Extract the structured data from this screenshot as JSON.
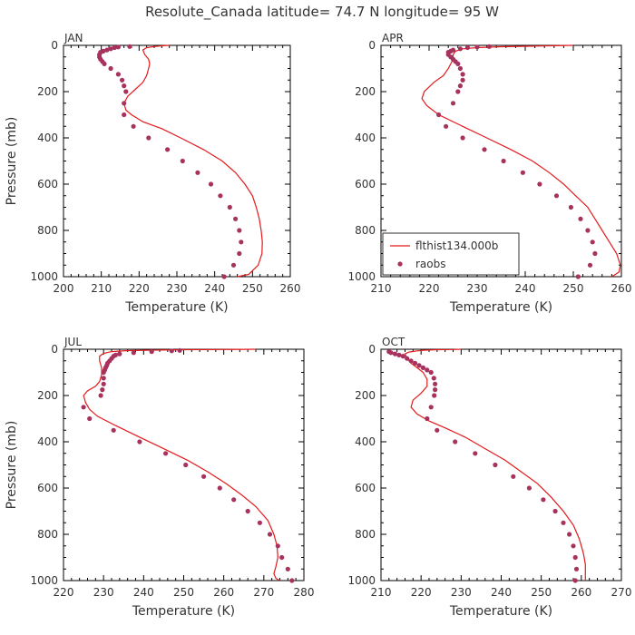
{
  "figure": {
    "title": "Resolute_Canada   latitude= 74.7 N longitude= 95 W"
  },
  "colors": {
    "model": "#e31a1c",
    "obs": "#a8325e",
    "axes": "#000000",
    "text": "#333333"
  },
  "legend": {
    "panel": 1,
    "placement": "lower-left",
    "model_label": "flthist134.000b",
    "obs_label": "raobs"
  },
  "chart_data": [
    {
      "type": "line",
      "month": "JAN",
      "xlabel": "Temperature (K)",
      "ylabel": "Pressure (mb)",
      "xlim": [
        200,
        260
      ],
      "ylim": [
        1000,
        0
      ],
      "xticks": [
        200,
        210,
        220,
        230,
        240,
        250,
        260
      ],
      "yticks": [
        0,
        200,
        400,
        600,
        800,
        1000
      ],
      "model": [
        [
          228,
          0
        ],
        [
          226,
          2
        ],
        [
          224,
          5
        ],
        [
          222,
          10
        ],
        [
          221,
          20
        ],
        [
          221.5,
          40
        ],
        [
          222.5,
          60
        ],
        [
          222.8,
          80
        ],
        [
          222.5,
          100
        ],
        [
          222,
          130
        ],
        [
          221,
          160
        ],
        [
          219,
          190
        ],
        [
          217,
          220
        ],
        [
          216,
          250
        ],
        [
          216.5,
          280
        ],
        [
          218,
          300
        ],
        [
          221,
          330
        ],
        [
          226,
          360
        ],
        [
          231,
          400
        ],
        [
          237,
          450
        ],
        [
          242,
          500
        ],
        [
          245.5,
          550
        ],
        [
          248,
          600
        ],
        [
          250,
          650
        ],
        [
          251,
          700
        ],
        [
          251.8,
          750
        ],
        [
          252.3,
          800
        ],
        [
          252.6,
          850
        ],
        [
          252.5,
          900
        ],
        [
          251.5,
          950
        ],
        [
          249,
          990
        ],
        [
          246,
          1000
        ]
      ],
      "obs": [
        [
          217.5,
          5
        ],
        [
          214.5,
          7
        ],
        [
          213.5,
          10
        ],
        [
          212.5,
          15
        ],
        [
          211.5,
          20
        ],
        [
          210.5,
          25
        ],
        [
          209.8,
          30
        ],
        [
          209.5,
          40
        ],
        [
          209.5,
          50
        ],
        [
          209.8,
          60
        ],
        [
          210.3,
          70
        ],
        [
          210.8,
          80
        ],
        [
          212.5,
          100
        ],
        [
          214.5,
          125
        ],
        [
          215.5,
          150
        ],
        [
          216,
          175
        ],
        [
          216.5,
          200
        ],
        [
          216,
          250
        ],
        [
          216,
          300
        ],
        [
          218.5,
          350
        ],
        [
          222.5,
          400
        ],
        [
          227.5,
          450
        ],
        [
          231.5,
          500
        ],
        [
          235.5,
          550
        ],
        [
          239,
          600
        ],
        [
          241.5,
          650
        ],
        [
          244,
          700
        ],
        [
          245.5,
          750
        ],
        [
          246.5,
          800
        ],
        [
          247,
          850
        ],
        [
          246.5,
          900
        ],
        [
          245,
          950
        ],
        [
          242.5,
          1000
        ]
      ]
    },
    {
      "type": "line",
      "month": "APR",
      "xlabel": "Temperature (K)",
      "ylabel": "",
      "xlim": [
        210,
        260
      ],
      "ylim": [
        1000,
        0
      ],
      "xticks": [
        210,
        220,
        230,
        240,
        250,
        260
      ],
      "yticks": [
        0,
        200,
        400,
        600,
        800,
        1000
      ],
      "model": [
        [
          250,
          0
        ],
        [
          245,
          2
        ],
        [
          240,
          4
        ],
        [
          235,
          6
        ],
        [
          230,
          10
        ],
        [
          227,
          15
        ],
        [
          225.5,
          25
        ],
        [
          225,
          40
        ],
        [
          225,
          60
        ],
        [
          224.5,
          80
        ],
        [
          224,
          100
        ],
        [
          223,
          130
        ],
        [
          221,
          160
        ],
        [
          219,
          200
        ],
        [
          218.5,
          230
        ],
        [
          219.5,
          260
        ],
        [
          222,
          300
        ],
        [
          227,
          350
        ],
        [
          232,
          400
        ],
        [
          237,
          450
        ],
        [
          241.5,
          500
        ],
        [
          245,
          550
        ],
        [
          248,
          600
        ],
        [
          250.5,
          650
        ],
        [
          253,
          700
        ],
        [
          254.5,
          750
        ],
        [
          256,
          800
        ],
        [
          257.5,
          850
        ],
        [
          259,
          900
        ],
        [
          259.8,
          950
        ],
        [
          259.5,
          980
        ],
        [
          258,
          1000
        ]
      ],
      "obs": [
        [
          232.5,
          5
        ],
        [
          230,
          7
        ],
        [
          228,
          10
        ],
        [
          226.5,
          15
        ],
        [
          225,
          20
        ],
        [
          224.5,
          25
        ],
        [
          224,
          30
        ],
        [
          224,
          40
        ],
        [
          224.5,
          50
        ],
        [
          225,
          60
        ],
        [
          225.5,
          70
        ],
        [
          226,
          80
        ],
        [
          226.5,
          100
        ],
        [
          227,
          125
        ],
        [
          227,
          150
        ],
        [
          226.5,
          175
        ],
        [
          226,
          200
        ],
        [
          225,
          250
        ],
        [
          222,
          300
        ],
        [
          223.5,
          350
        ],
        [
          227,
          400
        ],
        [
          231.5,
          450
        ],
        [
          235.5,
          500
        ],
        [
          239.5,
          550
        ],
        [
          243,
          600
        ],
        [
          246.5,
          650
        ],
        [
          249.5,
          700
        ],
        [
          251.5,
          750
        ],
        [
          253,
          800
        ],
        [
          254,
          850
        ],
        [
          254.5,
          900
        ],
        [
          253.5,
          950
        ],
        [
          251,
          1000
        ]
      ]
    },
    {
      "type": "line",
      "month": "JUL",
      "xlabel": "Temperature (K)",
      "ylabel": "Pressure (mb)",
      "xlim": [
        220,
        280
      ],
      "ylim": [
        1000,
        0
      ],
      "xticks": [
        220,
        230,
        240,
        250,
        260,
        270,
        280
      ],
      "yticks": [
        0,
        200,
        400,
        600,
        800,
        1000
      ],
      "model": [
        [
          268,
          0
        ],
        [
          260,
          1
        ],
        [
          250,
          2
        ],
        [
          242,
          4
        ],
        [
          236,
          6
        ],
        [
          232,
          10
        ],
        [
          230,
          18
        ],
        [
          229,
          30
        ],
        [
          229,
          50
        ],
        [
          229.5,
          80
        ],
        [
          229.5,
          110
        ],
        [
          229,
          140
        ],
        [
          228,
          160
        ],
        [
          226,
          180
        ],
        [
          225,
          200
        ],
        [
          225.5,
          230
        ],
        [
          226.5,
          260
        ],
        [
          228.5,
          290
        ],
        [
          233,
          330
        ],
        [
          239,
          380
        ],
        [
          245,
          430
        ],
        [
          251,
          480
        ],
        [
          256,
          530
        ],
        [
          260.5,
          580
        ],
        [
          264.5,
          630
        ],
        [
          268,
          680
        ],
        [
          271,
          740
        ],
        [
          272.5,
          800
        ],
        [
          273.3,
          850
        ],
        [
          273.5,
          900
        ],
        [
          273,
          940
        ],
        [
          272.5,
          970
        ],
        [
          273,
          990
        ],
        [
          274,
          1000
        ]
      ],
      "obs": [
        [
          249,
          5
        ],
        [
          247,
          7
        ],
        [
          242,
          10
        ],
        [
          237.5,
          15
        ],
        [
          234,
          20
        ],
        [
          233,
          25
        ],
        [
          232.5,
          30
        ],
        [
          232,
          40
        ],
        [
          231.5,
          50
        ],
        [
          231,
          60
        ],
        [
          230.8,
          70
        ],
        [
          230.5,
          80
        ],
        [
          230.3,
          90
        ],
        [
          230,
          100
        ],
        [
          230,
          125
        ],
        [
          230,
          150
        ],
        [
          229.7,
          175
        ],
        [
          229.3,
          200
        ],
        [
          225,
          250
        ],
        [
          226.5,
          300
        ],
        [
          232.5,
          350
        ],
        [
          239,
          400
        ],
        [
          245.5,
          450
        ],
        [
          250.5,
          500
        ],
        [
          255,
          550
        ],
        [
          259,
          600
        ],
        [
          262.5,
          650
        ],
        [
          266,
          700
        ],
        [
          269,
          750
        ],
        [
          271.5,
          800
        ],
        [
          273.5,
          850
        ],
        [
          274.5,
          900
        ],
        [
          276,
          950
        ],
        [
          277,
          1000
        ]
      ]
    },
    {
      "type": "line",
      "month": "OCT",
      "xlabel": "Temperature (K)",
      "ylabel": "",
      "xlim": [
        210,
        270
      ],
      "ylim": [
        1000,
        0
      ],
      "xticks": [
        210,
        220,
        230,
        240,
        250,
        260,
        270
      ],
      "yticks": [
        0,
        200,
        400,
        600,
        800,
        1000
      ],
      "model": [
        [
          230,
          0
        ],
        [
          228,
          1
        ],
        [
          224,
          2
        ],
        [
          221,
          4
        ],
        [
          219,
          7
        ],
        [
          217,
          12
        ],
        [
          216,
          20
        ],
        [
          216.5,
          40
        ],
        [
          217.5,
          60
        ],
        [
          219,
          80
        ],
        [
          220.5,
          100
        ],
        [
          221.5,
          130
        ],
        [
          221.5,
          160
        ],
        [
          220,
          190
        ],
        [
          218,
          220
        ],
        [
          217.5,
          250
        ],
        [
          219,
          280
        ],
        [
          222,
          310
        ],
        [
          226,
          340
        ],
        [
          231,
          380
        ],
        [
          236,
          430
        ],
        [
          241,
          480
        ],
        [
          245,
          530
        ],
        [
          249,
          580
        ],
        [
          252.5,
          640
        ],
        [
          255.5,
          700
        ],
        [
          258,
          760
        ],
        [
          259.5,
          820
        ],
        [
          260.5,
          880
        ],
        [
          261,
          930
        ],
        [
          261,
          970
        ],
        [
          261,
          1000
        ]
      ],
      "obs": [
        [
          212,
          10
        ],
        [
          212.5,
          15
        ],
        [
          213.5,
          20
        ],
        [
          214.5,
          25
        ],
        [
          215.5,
          30
        ],
        [
          216.5,
          40
        ],
        [
          217.5,
          50
        ],
        [
          218.5,
          60
        ],
        [
          219.5,
          70
        ],
        [
          220.5,
          80
        ],
        [
          221.5,
          90
        ],
        [
          222.5,
          100
        ],
        [
          223.2,
          125
        ],
        [
          223.5,
          150
        ],
        [
          223.5,
          175
        ],
        [
          223.3,
          200
        ],
        [
          222.5,
          250
        ],
        [
          221.5,
          300
        ],
        [
          224,
          350
        ],
        [
          228.5,
          400
        ],
        [
          233.5,
          450
        ],
        [
          238.5,
          500
        ],
        [
          243,
          550
        ],
        [
          247,
          600
        ],
        [
          250.5,
          650
        ],
        [
          253.5,
          700
        ],
        [
          255.5,
          750
        ],
        [
          257,
          800
        ],
        [
          258,
          850
        ],
        [
          258.5,
          900
        ],
        [
          258.8,
          950
        ],
        [
          258.5,
          1000
        ]
      ]
    }
  ]
}
